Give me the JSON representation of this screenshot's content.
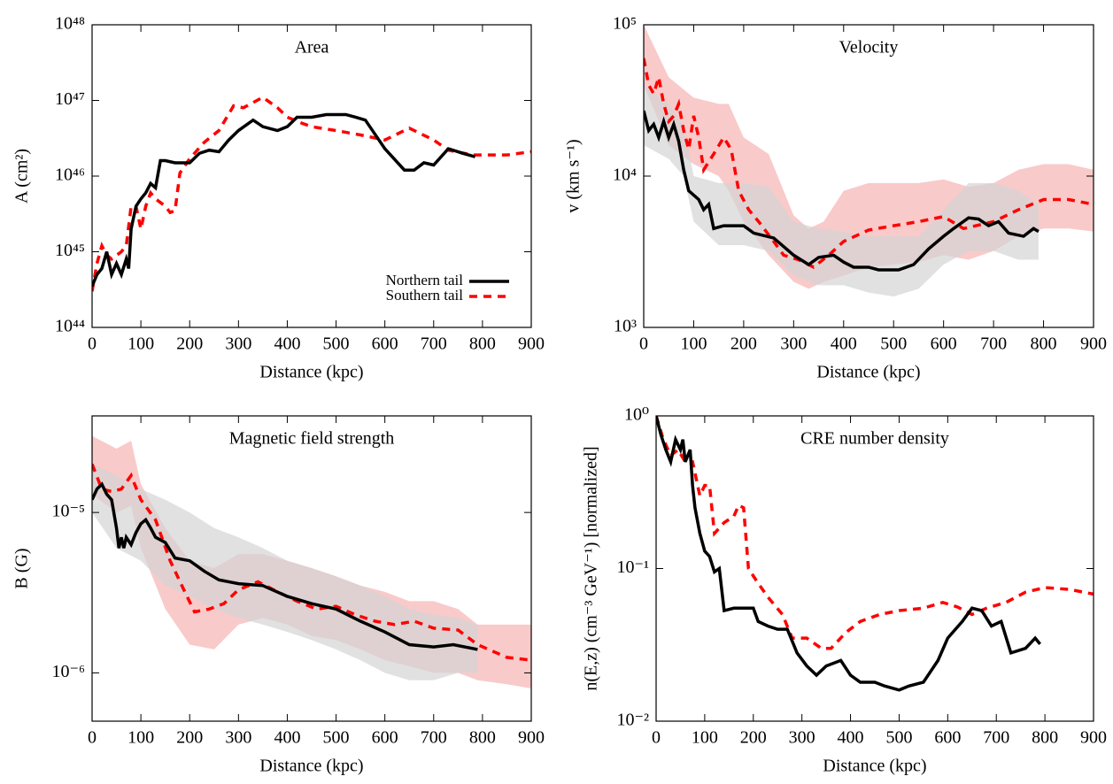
{
  "chart_data": [
    {
      "type": "line",
      "title": "Area",
      "xlabel": "Distance (kpc)",
      "ylabel": "A (cm²)",
      "log_y": true,
      "legend": "lower right",
      "xlim": [
        0,
        900
      ],
      "xticks": [
        0,
        100,
        200,
        300,
        400,
        500,
        600,
        700,
        800,
        900
      ],
      "ylim": [
        1e+44,
        1e+48
      ],
      "yticks": [
        {
          "value": 1e+44,
          "label": "10⁴⁴"
        },
        {
          "value": 1e+45,
          "label": "10⁴⁵"
        },
        {
          "value": 1e+46,
          "label": "10⁴⁶"
        },
        {
          "value": 1e+47,
          "label": "10⁴⁷"
        },
        {
          "value": 1e+48,
          "label": "10⁴⁸"
        }
      ],
      "bands": [],
      "series": [
        {
          "name": "Northern tail",
          "color": "#000000",
          "dash": false,
          "x": [
            0,
            10,
            20,
            30,
            40,
            50,
            60,
            70,
            75,
            80,
            90,
            100,
            110,
            120,
            130,
            140,
            150,
            170,
            200,
            220,
            240,
            260,
            280,
            300,
            330,
            350,
            380,
            400,
            420,
            450,
            480,
            520,
            540,
            560,
            600,
            640,
            660,
            680,
            700,
            730,
            760,
            785
          ],
          "values": [
            3.5e+44,
            5e+44,
            6e+44,
            1e+45,
            5e+44,
            7e+44,
            5e+44,
            8e+44,
            6e+44,
            2e+45,
            4e+45,
            5e+45,
            6e+45,
            8e+45,
            7e+45,
            1.6e+46,
            1.6e+46,
            1.5e+46,
            1.5e+46,
            2e+46,
            2.2e+46,
            2.1e+46,
            3e+46,
            4e+46,
            5.5e+46,
            4.5e+46,
            4e+46,
            4.5e+46,
            6e+46,
            6e+46,
            6.5e+46,
            6.5e+46,
            6e+46,
            5.5e+46,
            2.3e+46,
            1.2e+46,
            1.2e+46,
            1.5e+46,
            1.4e+46,
            2.3e+46,
            2e+46,
            1.8e+46
          ]
        },
        {
          "name": "Southern tail",
          "color": "#ff0000",
          "dash": true,
          "x": [
            0,
            10,
            20,
            30,
            40,
            60,
            70,
            80,
            90,
            100,
            110,
            120,
            130,
            150,
            160,
            170,
            180,
            200,
            230,
            260,
            290,
            310,
            350,
            380,
            400,
            430,
            450,
            500,
            550,
            600,
            650,
            700,
            730,
            780,
            850,
            900
          ],
          "values": [
            3e+44,
            7e+44,
            1.2e+45,
            9e+44,
            8e+44,
            1e+45,
            1.2e+45,
            4e+45,
            4e+45,
            2e+45,
            4e+45,
            6e+45,
            5e+45,
            4e+45,
            3.3e+45,
            3.5e+45,
            1.1e+46,
            1.7e+46,
            2.8e+46,
            4e+46,
            8.5e+46,
            8e+46,
            1.1e+47,
            8e+46,
            6e+46,
            5e+46,
            4.5e+46,
            4e+46,
            3.5e+46,
            3e+46,
            4.3e+46,
            3e+46,
            2.2e+46,
            1.9e+46,
            1.9e+46,
            2.1e+46
          ]
        }
      ]
    },
    {
      "type": "line",
      "title": "Velocity",
      "xlabel": "Distance (kpc)",
      "ylabel": "v (km s⁻¹)",
      "log_y": true,
      "xlim": [
        0,
        900
      ],
      "xticks": [
        0,
        100,
        200,
        300,
        400,
        500,
        600,
        700,
        800,
        900
      ],
      "ylim": [
        1000,
        100000
      ],
      "yticks": [
        {
          "value": 1000,
          "label": "10³"
        },
        {
          "value": 10000,
          "label": "10⁴"
        },
        {
          "value": 100000,
          "label": "10⁵"
        }
      ],
      "bands": [
        {
          "color": "#f7b3b3",
          "x": [
            0,
            50,
            100,
            150,
            170,
            200,
            250,
            300,
            330,
            360,
            400,
            450,
            500,
            550,
            600,
            650,
            700,
            750,
            800,
            850,
            900
          ],
          "upper": [
            100000,
            45000,
            33000,
            30000,
            30000,
            18000,
            14000,
            5500,
            4500,
            5000,
            8000,
            9000,
            9000,
            9000,
            9500,
            8500,
            9000,
            11000,
            12000,
            12000,
            11000
          ],
          "lower": [
            40000,
            16000,
            12000,
            10000,
            8000,
            5000,
            3000,
            2000,
            1800,
            2000,
            2200,
            2500,
            2600,
            2700,
            3000,
            2800,
            3200,
            4000,
            4500,
            4500,
            4300
          ]
        },
        {
          "color": "#d4d4d4",
          "x": [
            0,
            50,
            80,
            100,
            150,
            200,
            250,
            300,
            350,
            400,
            450,
            500,
            550,
            600,
            650,
            700,
            750,
            790
          ],
          "upper": [
            40000,
            30000,
            22000,
            10000,
            9000,
            9000,
            8500,
            5000,
            4500,
            4300,
            4000,
            4000,
            4000,
            6000,
            9000,
            9000,
            8000,
            6500
          ],
          "lower": [
            16000,
            13000,
            10000,
            5000,
            3500,
            3500,
            3200,
            2200,
            1900,
            1900,
            1700,
            1600,
            1800,
            2600,
            3200,
            3200,
            2800,
            2800
          ]
        }
      ],
      "series": [
        {
          "color": "#000000",
          "dash": false,
          "x": [
            0,
            10,
            20,
            30,
            40,
            50,
            60,
            70,
            80,
            90,
            110,
            120,
            130,
            140,
            160,
            200,
            220,
            260,
            300,
            330,
            350,
            380,
            400,
            420,
            450,
            470,
            510,
            540,
            570,
            600,
            620,
            650,
            670,
            690,
            710,
            730,
            760,
            780,
            790
          ],
          "values": [
            27000,
            20000,
            22000,
            18000,
            23000,
            18000,
            22000,
            17000,
            11000,
            8000,
            7000,
            6000,
            6500,
            4500,
            4700,
            4700,
            4200,
            3900,
            3000,
            2600,
            2900,
            3000,
            2700,
            2500,
            2500,
            2400,
            2400,
            2600,
            3300,
            4000,
            4500,
            5300,
            5200,
            4700,
            5000,
            4200,
            4000,
            4500,
            4300
          ]
        },
        {
          "color": "#ff0000",
          "dash": true,
          "x": [
            0,
            10,
            20,
            30,
            40,
            50,
            60,
            70,
            80,
            90,
            100,
            110,
            120,
            140,
            160,
            175,
            190,
            210,
            230,
            260,
            280,
            310,
            340,
            370,
            400,
            450,
            500,
            550,
            600,
            640,
            700,
            750,
            800,
            850,
            900
          ],
          "values": [
            60000,
            40000,
            35000,
            45000,
            30000,
            23000,
            25000,
            30000,
            20000,
            15000,
            25000,
            18000,
            11000,
            14000,
            18000,
            15000,
            8000,
            6000,
            5000,
            3700,
            3000,
            2800,
            2500,
            3000,
            3700,
            4400,
            4700,
            5000,
            5400,
            4500,
            5000,
            6000,
            7000,
            7000,
            6500
          ]
        }
      ]
    },
    {
      "type": "line",
      "title": "Magnetic field strength",
      "xlabel": "Distance (kpc)",
      "ylabel": "B (G)",
      "log_y": true,
      "xlim": [
        0,
        900
      ],
      "xticks": [
        0,
        100,
        200,
        300,
        400,
        500,
        600,
        700,
        800,
        900
      ],
      "ylim": [
        5e-07,
        4e-05
      ],
      "yticks": [
        {
          "value": 1e-06,
          "label": "10⁻⁶"
        },
        {
          "value": 1e-05,
          "label": "10⁻⁵"
        }
      ],
      "bands": [
        {
          "color": "#f7b3b3",
          "x": [
            0,
            50,
            80,
            100,
            150,
            200,
            250,
            300,
            350,
            400,
            450,
            500,
            550,
            600,
            650,
            700,
            750,
            790,
            850,
            900
          ],
          "upper": [
            3e-05,
            2.5e-05,
            2.8e-05,
            1.5e-05,
            8e-06,
            5e-06,
            4.5e-06,
            5.5e-06,
            5.5e-06,
            5e-06,
            4.5e-06,
            4e-06,
            3.5e-06,
            3.2e-06,
            2.8e-06,
            2.8e-06,
            2.5e-06,
            2e-06,
            2e-06,
            2e-06
          ],
          "lower": [
            1.3e-05,
            1e-05,
            1.1e-05,
            6e-06,
            2.5e-06,
            1.5e-06,
            1.4e-06,
            2e-06,
            2.2e-06,
            2e-06,
            1.7e-06,
            1.6e-06,
            1.4e-06,
            1.2e-06,
            1.1e-06,
            1e-06,
            1e-06,
            9e-07,
            8.5e-07,
            8e-07
          ]
        },
        {
          "color": "#d4d4d4",
          "x": [
            0,
            50,
            100,
            150,
            200,
            250,
            300,
            350,
            400,
            450,
            500,
            550,
            600,
            650,
            700,
            750,
            790
          ],
          "upper": [
            2e-05,
            1.7e-05,
            1.4e-05,
            1.2e-05,
            1e-05,
            8e-06,
            7e-06,
            6e-06,
            5e-06,
            4.5e-06,
            4e-06,
            3.5e-06,
            3e-06,
            2.5e-06,
            2.3e-06,
            2.2e-06,
            2e-06
          ],
          "lower": [
            1e-05,
            6e-06,
            5e-06,
            3.5e-06,
            3e-06,
            2.5e-06,
            2.2e-06,
            2e-06,
            1.8e-06,
            1.6e-06,
            1.4e-06,
            1.2e-06,
            1e-06,
            9e-07,
            9e-07,
            1e-06,
            1e-06
          ]
        }
      ],
      "series": [
        {
          "color": "#000000",
          "dash": false,
          "x": [
            0,
            10,
            20,
            30,
            40,
            50,
            55,
            60,
            65,
            70,
            80,
            90,
            100,
            110,
            120,
            130,
            150,
            170,
            200,
            230,
            260,
            300,
            350,
            400,
            450,
            500,
            550,
            600,
            650,
            700,
            740,
            790
          ],
          "values": [
            1.2e-05,
            1.4e-05,
            1.5e-05,
            1.3e-05,
            1.2e-05,
            8e-06,
            6e-06,
            7e-06,
            6e-06,
            7e-06,
            6.3e-06,
            7.5e-06,
            8.5e-06,
            9e-06,
            8e-06,
            7e-06,
            6.5e-06,
            5.2e-06,
            5e-06,
            4.3e-06,
            3.8e-06,
            3.6e-06,
            3.5e-06,
            3e-06,
            2.7e-06,
            2.5e-06,
            2.1e-06,
            1.8e-06,
            1.5e-06,
            1.45e-06,
            1.5e-06,
            1.4e-06
          ]
        },
        {
          "color": "#ff0000",
          "dash": true,
          "x": [
            0,
            20,
            40,
            60,
            80,
            100,
            130,
            160,
            190,
            210,
            240,
            270,
            300,
            340,
            380,
            420,
            460,
            500,
            540,
            580,
            620,
            660,
            700,
            750,
            790,
            850,
            900
          ],
          "values": [
            2e-05,
            1.4e-05,
            1.35e-05,
            1.4e-05,
            1.7e-05,
            1.2e-05,
            9e-06,
            5e-06,
            3.2e-06,
            2.4e-06,
            2.5e-06,
            2.7e-06,
            3.3e-06,
            3.7e-06,
            3.2e-06,
            2.8e-06,
            2.5e-06,
            2.6e-06,
            2.3e-06,
            2.1e-06,
            2e-06,
            2.1e-06,
            1.9e-06,
            1.85e-06,
            1.5e-06,
            1.25e-06,
            1.2e-06
          ]
        }
      ]
    },
    {
      "type": "line",
      "title": "CRE number density",
      "xlabel": "Distance (kpc)",
      "ylabel": "n(E,z) (cm⁻³ GeV⁻¹) [normalized]",
      "log_y": true,
      "xlim": [
        0,
        900
      ],
      "xticks": [
        0,
        100,
        200,
        300,
        400,
        500,
        600,
        700,
        800,
        900
      ],
      "ylim": [
        0.01,
        1
      ],
      "yticks": [
        {
          "value": 0.01,
          "label": "10⁻²"
        },
        {
          "value": 0.1,
          "label": "10⁻¹"
        },
        {
          "value": 1,
          "label": "10⁰"
        }
      ],
      "bands": [],
      "series": [
        {
          "color": "#000000",
          "dash": false,
          "x": [
            0,
            10,
            20,
            30,
            40,
            50,
            55,
            60,
            70,
            75,
            80,
            90,
            100,
            110,
            120,
            130,
            140,
            160,
            200,
            210,
            230,
            250,
            270,
            290,
            310,
            330,
            350,
            380,
            400,
            420,
            450,
            470,
            500,
            520,
            550,
            580,
            600,
            630,
            650,
            670,
            690,
            710,
            730,
            760,
            780,
            790
          ],
          "values": [
            1,
            0.75,
            0.6,
            0.5,
            0.7,
            0.6,
            0.7,
            0.5,
            0.6,
            0.35,
            0.25,
            0.17,
            0.13,
            0.12,
            0.095,
            0.1,
            0.053,
            0.055,
            0.055,
            0.045,
            0.042,
            0.04,
            0.04,
            0.028,
            0.023,
            0.02,
            0.023,
            0.025,
            0.02,
            0.018,
            0.018,
            0.017,
            0.016,
            0.017,
            0.018,
            0.025,
            0.035,
            0.045,
            0.055,
            0.053,
            0.042,
            0.045,
            0.028,
            0.03,
            0.035,
            0.032
          ]
        },
        {
          "color": "#ff0000",
          "dash": true,
          "x": [
            0,
            15,
            30,
            45,
            60,
            75,
            90,
            100,
            110,
            120,
            140,
            160,
            170,
            180,
            190,
            210,
            230,
            260,
            280,
            310,
            340,
            360,
            390,
            420,
            460,
            500,
            550,
            590,
            620,
            650,
            680,
            720,
            760,
            800,
            850,
            900
          ],
          "values": [
            1,
            0.7,
            0.55,
            0.6,
            0.5,
            0.5,
            0.3,
            0.35,
            0.35,
            0.17,
            0.2,
            0.22,
            0.26,
            0.25,
            0.1,
            0.08,
            0.065,
            0.05,
            0.035,
            0.035,
            0.03,
            0.03,
            0.038,
            0.045,
            0.05,
            0.053,
            0.055,
            0.06,
            0.056,
            0.05,
            0.055,
            0.06,
            0.07,
            0.075,
            0.073,
            0.068
          ]
        }
      ]
    }
  ]
}
